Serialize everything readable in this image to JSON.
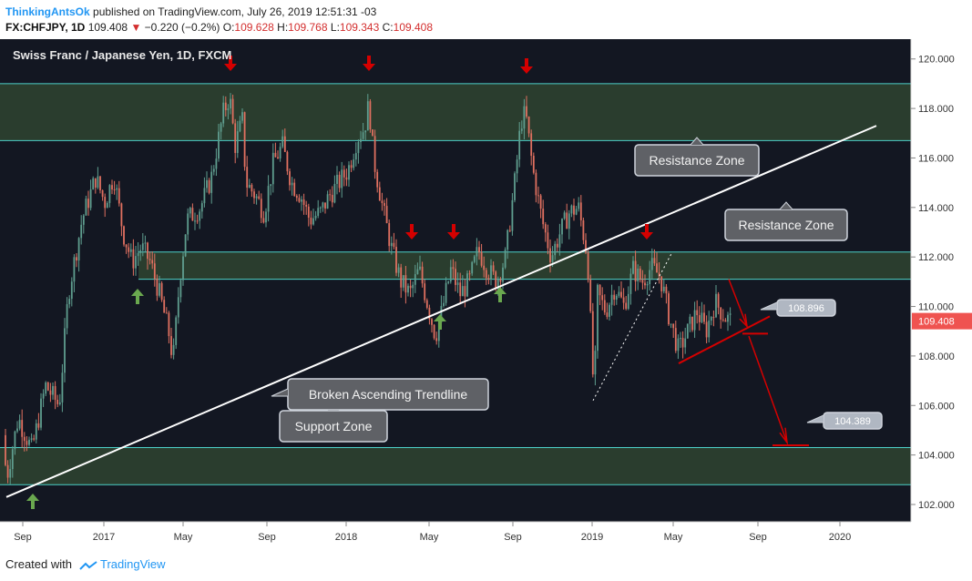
{
  "header": {
    "author": "ThinkingAntsOk",
    "published": "published on TradingView.com, July 26, 2019 12:51:31 -03",
    "symbol_line": "FX:CHFJPY, 1D",
    "last": "109.408",
    "change": "−0.220 (−0.2%)",
    "o_label": "O:",
    "o": "109.628",
    "h_label": "H:",
    "h": "109.768",
    "l_label": "L:",
    "l": "109.343",
    "c_label": "C:",
    "c": "109.408"
  },
  "footer": {
    "created_with": "Created with",
    "brand": "TradingView"
  },
  "colors": {
    "background": "#131722",
    "zone_fill": "#2a3d2e",
    "zone_line": "#4dd0c8",
    "bull": "#5f9e8f",
    "bear": "#e07060",
    "trendline": "#ffffff",
    "arrow_down": "#d50000",
    "arrow_up": "#6aa84f",
    "price_tag": "#ef5350"
  },
  "chart_data": {
    "type": "candlestick",
    "title": "Swiss Franc / Japanese Yen, 1D, FXCM",
    "ylim": [
      101.3,
      120.8
    ],
    "y_ticks": [
      "120.000",
      "118.000",
      "116.000",
      "114.000",
      "112.000",
      "110.000",
      "108.000",
      "106.000",
      "104.000",
      "102.000"
    ],
    "x_ticks": [
      "Sep",
      "2017",
      "May",
      "Sep",
      "2018",
      "May",
      "Sep",
      "2019",
      "May",
      "Sep",
      "2020"
    ],
    "last_price": "109.408",
    "price_path": [
      [
        0,
        104.8
      ],
      [
        8,
        103.2
      ],
      [
        20,
        105.5
      ],
      [
        35,
        104.2
      ],
      [
        50,
        106.8
      ],
      [
        65,
        106.0
      ],
      [
        75,
        110.5
      ],
      [
        90,
        113.5
      ],
      [
        105,
        115.2
      ],
      [
        115,
        114.2
      ],
      [
        125,
        115.3
      ],
      [
        135,
        113.0
      ],
      [
        145,
        111.8
      ],
      [
        155,
        112.4
      ],
      [
        165,
        111.8
      ],
      [
        175,
        110.5
      ],
      [
        185,
        109.0
      ],
      [
        190,
        107.8
      ],
      [
        197,
        111.0
      ],
      [
        205,
        113.5
      ],
      [
        220,
        114.0
      ],
      [
        232,
        115.2
      ],
      [
        245,
        117.8
      ],
      [
        252,
        118.5
      ],
      [
        258,
        116.5
      ],
      [
        266,
        117.5
      ],
      [
        270,
        115.0
      ],
      [
        280,
        114.5
      ],
      [
        290,
        113.8
      ],
      [
        300,
        115.8
      ],
      [
        310,
        116.5
      ],
      [
        320,
        115.0
      ],
      [
        330,
        114.5
      ],
      [
        340,
        113.5
      ],
      [
        352,
        113.8
      ],
      [
        362,
        114.5
      ],
      [
        372,
        115.0
      ],
      [
        382,
        115.5
      ],
      [
        392,
        116.8
      ],
      [
        400,
        117.2
      ],
      [
        405,
        118.2
      ],
      [
        410,
        116.0
      ],
      [
        420,
        114.0
      ],
      [
        430,
        112.3
      ],
      [
        440,
        111.0
      ],
      [
        450,
        110.5
      ],
      [
        460,
        111.5
      ],
      [
        470,
        110.0
      ],
      [
        478,
        108.8
      ],
      [
        485,
        109.8
      ],
      [
        495,
        111.5
      ],
      [
        505,
        110.5
      ],
      [
        515,
        111.0
      ],
      [
        525,
        112.3
      ],
      [
        535,
        111.5
      ],
      [
        545,
        111.0
      ],
      [
        555,
        112.0
      ],
      [
        565,
        115.0
      ],
      [
        572,
        117.5
      ],
      [
        577,
        117.8
      ],
      [
        585,
        115.5
      ],
      [
        595,
        113.5
      ],
      [
        605,
        112.0
      ],
      [
        615,
        113.0
      ],
      [
        625,
        113.8
      ],
      [
        635,
        114.0
      ],
      [
        645,
        112.0
      ],
      [
        652,
        106.3
      ],
      [
        656,
        110.5
      ],
      [
        665,
        109.8
      ],
      [
        675,
        110.8
      ],
      [
        685,
        110.0
      ],
      [
        695,
        111.5
      ],
      [
        705,
        111.0
      ],
      [
        715,
        111.6
      ],
      [
        725,
        111.2
      ],
      [
        735,
        109.5
      ],
      [
        745,
        108.2
      ],
      [
        755,
        109.0
      ],
      [
        765,
        109.8
      ],
      [
        775,
        109.0
      ],
      [
        785,
        110.2
      ],
      [
        795,
        109.6
      ],
      [
        803,
        109.4
      ]
    ],
    "zones": [
      {
        "kind": "resistance",
        "from": 116.7,
        "to": 119.0
      },
      {
        "kind": "resistance",
        "from": 111.1,
        "to": 112.2
      },
      {
        "kind": "support",
        "from": 102.8,
        "to": 104.3
      }
    ],
    "annotations": [
      {
        "name": "resistance-zone-label-upper",
        "text": "Resistance Zone",
        "callout": "down"
      },
      {
        "name": "resistance-zone-label-middle",
        "text": "Resistance Zone",
        "callout": "down"
      },
      {
        "name": "support-zone-label",
        "text": "Support Zone",
        "callout": "down"
      },
      {
        "name": "trendline-label",
        "text": "Broken Ascending Trendline",
        "callout": "left"
      },
      {
        "name": "target-label-1",
        "text": "108.896",
        "callout": "left"
      },
      {
        "name": "target-label-2",
        "text": "104.389",
        "callout": "left"
      }
    ],
    "trendline": {
      "from": [
        102.3
      ],
      "to": [
        117.3
      ]
    }
  }
}
